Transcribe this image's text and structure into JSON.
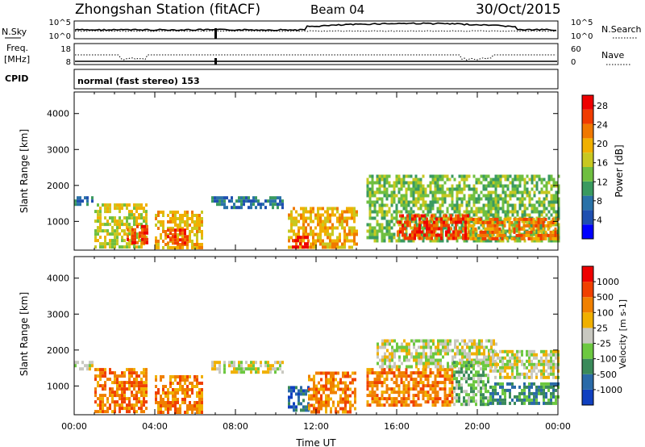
{
  "header": {
    "station": "Zhongshan Station (fitACF)",
    "beam": "Beam 04",
    "date": "30/Oct/2015"
  },
  "strips": {
    "nsky": {
      "left_label": "N.Sky",
      "left_ticks": [
        "10^5",
        "10^0"
      ],
      "right_ticks": [
        "10^5",
        "10^0"
      ],
      "right_label": "N.Search"
    },
    "freq": {
      "left_label_1": "Freq.",
      "left_label_2": "[MHz]",
      "left_ticks": [
        "18",
        "8"
      ],
      "right_ticks": [
        "60",
        "0"
      ],
      "right_label": "Nave"
    },
    "cpid": {
      "label": "CPID",
      "value": "normal (fast stereo) 153"
    }
  },
  "chart_data": [
    {
      "type": "heatmap",
      "title": "",
      "xlabel": "",
      "ylabel": "Slant Range [km]",
      "x_ticks": [
        "00:00",
        "04:00",
        "08:00",
        "12:00",
        "16:00",
        "20:00",
        "00:00"
      ],
      "y_ticks": [
        1000,
        2000,
        3000,
        4000
      ],
      "xlim_hours": [
        0,
        24
      ],
      "ylim": [
        200,
        4600
      ],
      "colorbar": {
        "label": "Power [dB]",
        "ticks": [
          "4",
          "8",
          "12",
          "16",
          "20",
          "24",
          "28"
        ],
        "colors": [
          "#0000ff",
          "#1f4fb0",
          "#2a72a8",
          "#3a9a60",
          "#6fbf40",
          "#c8c820",
          "#f0b000",
          "#f07800",
          "#f03c00",
          "#ee0000"
        ]
      },
      "regions": [
        {
          "t": [
            0.0,
            0.9
          ],
          "r": [
            1450,
            1700
          ],
          "level": 2
        },
        {
          "t": [
            1.0,
            3.6
          ],
          "r": [
            300,
            1500
          ],
          "level": 5
        },
        {
          "t": [
            2.6,
            3.6
          ],
          "r": [
            400,
            900
          ],
          "level": 8
        },
        {
          "t": [
            4.0,
            6.3
          ],
          "r": [
            300,
            1300
          ],
          "level": 6
        },
        {
          "t": [
            4.6,
            5.6
          ],
          "r": [
            400,
            800
          ],
          "level": 8
        },
        {
          "t": [
            6.8,
            10.3
          ],
          "r": [
            1400,
            1700
          ],
          "level": 2
        },
        {
          "t": [
            10.6,
            14.0
          ],
          "r": [
            300,
            1400
          ],
          "level": 6
        },
        {
          "t": [
            10.8,
            11.6
          ],
          "r": [
            300,
            600
          ],
          "level": 9
        },
        {
          "t": [
            14.5,
            24.0
          ],
          "r": [
            500,
            2300
          ],
          "level": 4
        },
        {
          "t": [
            16.0,
            19.5
          ],
          "r": [
            500,
            1200
          ],
          "level": 8
        },
        {
          "t": [
            19.5,
            24.0
          ],
          "r": [
            500,
            1100
          ],
          "level": 7
        }
      ]
    },
    {
      "type": "heatmap",
      "title": "",
      "xlabel": "Time UT",
      "ylabel": "Slant Range [km]",
      "x_ticks": [
        "00:00",
        "04:00",
        "08:00",
        "12:00",
        "16:00",
        "20:00",
        "00:00"
      ],
      "y_ticks": [
        1000,
        2000,
        3000,
        4000
      ],
      "xlim_hours": [
        0,
        24
      ],
      "ylim": [
        200,
        4600
      ],
      "colorbar": {
        "label": "Velocity [m s-1]",
        "ticks": [
          "1000",
          "500",
          "100",
          "25",
          "-25",
          "-100",
          "-500",
          "-1000"
        ],
        "colors": [
          "#1040c0",
          "#2a6aa8",
          "#3a8a5a",
          "#6cc840",
          "#c8c8c0",
          "#f0b000",
          "#f08000",
          "#f04000",
          "#ee0000"
        ]
      },
      "regions": [
        {
          "t": [
            0.0,
            0.9
          ],
          "r": [
            1450,
            1700
          ],
          "level": 4
        },
        {
          "t": [
            1.0,
            3.6
          ],
          "r": [
            300,
            1500
          ],
          "level": 6
        },
        {
          "t": [
            4.0,
            6.3
          ],
          "r": [
            300,
            1300
          ],
          "level": 6
        },
        {
          "t": [
            6.8,
            10.3
          ],
          "r": [
            1400,
            1700
          ],
          "level": 4
        },
        {
          "t": [
            10.6,
            11.6
          ],
          "r": [
            300,
            1000
          ],
          "level": 1
        },
        {
          "t": [
            11.6,
            14.0
          ],
          "r": [
            300,
            1400
          ],
          "level": 6
        },
        {
          "t": [
            14.5,
            18.8
          ],
          "r": [
            500,
            1500
          ],
          "level": 6
        },
        {
          "t": [
            15.0,
            21.0
          ],
          "r": [
            1500,
            2300
          ],
          "level": 4
        },
        {
          "t": [
            18.8,
            20.6
          ],
          "r": [
            500,
            1700
          ],
          "level": 3
        },
        {
          "t": [
            20.6,
            24.0
          ],
          "r": [
            500,
            1100
          ],
          "level": 2
        },
        {
          "t": [
            20.6,
            24.0
          ],
          "r": [
            1200,
            2000
          ],
          "level": 4
        }
      ]
    }
  ]
}
